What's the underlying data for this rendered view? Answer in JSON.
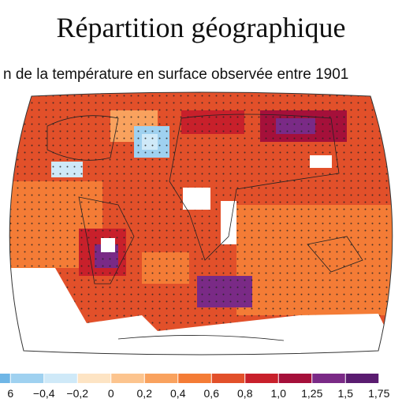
{
  "title": "Répartition géographique",
  "subtitle": "n de la température en surface observée entre 1901",
  "legend": {
    "labels": [
      "6",
      "−0,4",
      "−0,2",
      "0",
      "0,2",
      "0,4",
      "0,6",
      "0,8",
      "1,0",
      "1,25",
      "1,5",
      "1,75"
    ],
    "colors": [
      "#6fb6e6",
      "#9fd1f0",
      "#cfe9f8",
      "#fde4c4",
      "#fcc48e",
      "#f9a25e",
      "#f47c36",
      "#e2502a",
      "#c8202b",
      "#a5103a",
      "#7a2a86",
      "#5a1c70"
    ]
  }
}
